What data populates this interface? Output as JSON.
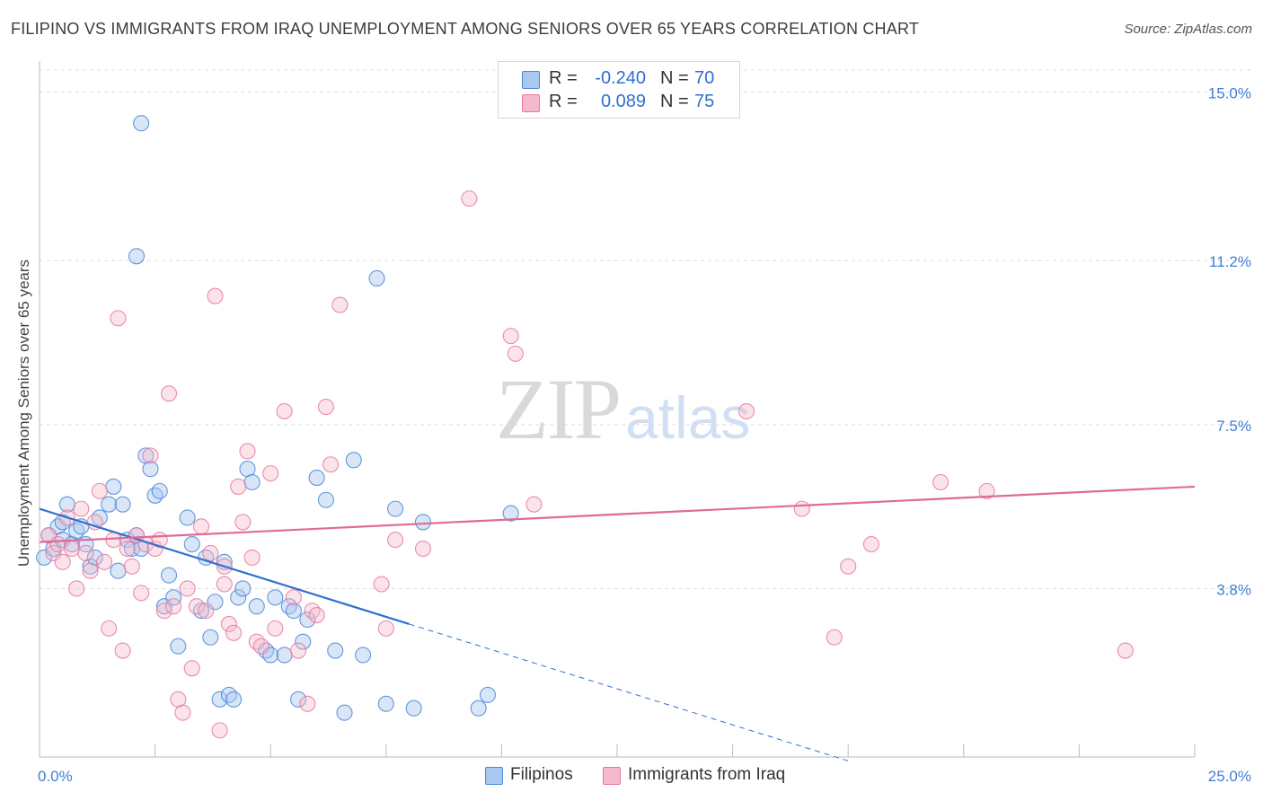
{
  "header": {
    "title": "FILIPINO VS IMMIGRANTS FROM IRAQ UNEMPLOYMENT AMONG SENIORS OVER 65 YEARS CORRELATION CHART",
    "source": "Source: ZipAtlas.com"
  },
  "watermark": {
    "zip": "ZIP",
    "atlas": "atlas"
  },
  "legend_top": {
    "rows": [
      {
        "r_label": "R =",
        "r_value": "-0.240",
        "n_label": "N =",
        "n_value": "70",
        "color": "#a9c8ef"
      },
      {
        "r_label": "R =",
        "r_value": "0.089",
        "n_label": "N =",
        "n_value": "75",
        "color": "#f6b8cb"
      }
    ]
  },
  "legend_bottom": {
    "items": [
      {
        "label": "Filipinos",
        "color": "#a9c8ef"
      },
      {
        "label": "Immigrants from Iraq",
        "color": "#f6b8cb"
      }
    ]
  },
  "chart_data": {
    "type": "scatter",
    "title": "FILIPINO VS IMMIGRANTS FROM IRAQ UNEMPLOYMENT AMONG SENIORS OVER 65 YEARS CORRELATION CHART",
    "xlabel": "",
    "ylabel": "Unemployment Among Seniors over 65 years",
    "xlim": [
      0,
      25
    ],
    "ylim": [
      0,
      15.5
    ],
    "x_tick_labels": [
      "0.0%",
      "25.0%"
    ],
    "y_ticks": [
      3.8,
      7.5,
      11.2,
      15.0
    ],
    "y_tick_labels": [
      "3.8%",
      "7.5%",
      "11.2%",
      "15.0%"
    ],
    "grid": true,
    "legend_position": "top-center",
    "colors": {
      "filipinos": "#4a87d6",
      "iraq": "#e8799f",
      "filipinos_fill": "#a9c8ef",
      "iraq_fill": "#f6b8cb"
    },
    "series": [
      {
        "name": "Filipinos",
        "r": -0.24,
        "n": 70,
        "trend": {
          "x0": 0.0,
          "y0": 5.6,
          "x1": 8.0,
          "y1": 3.0,
          "dash_to_x": 17.5
        },
        "points": [
          [
            0.1,
            4.5
          ],
          [
            0.2,
            5.0
          ],
          [
            0.3,
            4.7
          ],
          [
            0.4,
            5.2
          ],
          [
            0.5,
            4.9
          ],
          [
            0.5,
            5.3
          ],
          [
            0.6,
            5.7
          ],
          [
            0.7,
            4.8
          ],
          [
            0.8,
            5.1
          ],
          [
            0.9,
            5.2
          ],
          [
            1.0,
            4.8
          ],
          [
            1.1,
            4.3
          ],
          [
            1.2,
            4.5
          ],
          [
            1.3,
            5.4
          ],
          [
            1.5,
            5.7
          ],
          [
            1.6,
            6.1
          ],
          [
            1.7,
            4.2
          ],
          [
            1.8,
            5.7
          ],
          [
            1.9,
            4.9
          ],
          [
            2.0,
            4.7
          ],
          [
            2.1,
            5.0
          ],
          [
            2.2,
            4.7
          ],
          [
            2.3,
            6.8
          ],
          [
            2.4,
            6.5
          ],
          [
            2.5,
            5.9
          ],
          [
            2.6,
            6.0
          ],
          [
            2.7,
            3.4
          ],
          [
            2.8,
            4.1
          ],
          [
            2.9,
            3.6
          ],
          [
            3.0,
            2.5
          ],
          [
            3.2,
            5.4
          ],
          [
            3.3,
            4.8
          ],
          [
            3.5,
            3.3
          ],
          [
            3.6,
            4.5
          ],
          [
            3.7,
            2.7
          ],
          [
            3.8,
            3.5
          ],
          [
            3.9,
            1.3
          ],
          [
            4.0,
            4.4
          ],
          [
            4.1,
            1.4
          ],
          [
            4.2,
            1.3
          ],
          [
            4.3,
            3.6
          ],
          [
            4.4,
            3.8
          ],
          [
            4.5,
            6.5
          ],
          [
            4.6,
            6.2
          ],
          [
            4.7,
            3.4
          ],
          [
            4.9,
            2.4
          ],
          [
            5.0,
            2.3
          ],
          [
            5.1,
            3.6
          ],
          [
            5.3,
            2.3
          ],
          [
            5.4,
            3.4
          ],
          [
            5.5,
            3.3
          ],
          [
            5.6,
            1.3
          ],
          [
            5.7,
            2.6
          ],
          [
            5.8,
            3.1
          ],
          [
            6.0,
            6.3
          ],
          [
            6.2,
            5.8
          ],
          [
            6.4,
            2.4
          ],
          [
            6.6,
            1.0
          ],
          [
            6.8,
            6.7
          ],
          [
            7.0,
            2.3
          ],
          [
            7.3,
            10.8
          ],
          [
            7.5,
            1.2
          ],
          [
            7.7,
            5.6
          ],
          [
            8.1,
            1.1
          ],
          [
            8.3,
            5.3
          ],
          [
            9.5,
            1.1
          ],
          [
            9.7,
            1.4
          ],
          [
            10.2,
            5.5
          ],
          [
            2.1,
            11.3
          ],
          [
            2.2,
            14.3
          ]
        ]
      },
      {
        "name": "Immigrants from Iraq",
        "r": 0.089,
        "n": 75,
        "trend": {
          "x0": 0.0,
          "y0": 4.85,
          "x1": 25.0,
          "y1": 6.1
        },
        "points": [
          [
            0.2,
            5.0
          ],
          [
            0.3,
            4.6
          ],
          [
            0.4,
            4.8
          ],
          [
            0.5,
            4.4
          ],
          [
            0.6,
            5.4
          ],
          [
            0.7,
            4.7
          ],
          [
            0.8,
            3.8
          ],
          [
            0.9,
            5.6
          ],
          [
            1.0,
            4.6
          ],
          [
            1.1,
            4.2
          ],
          [
            1.2,
            5.3
          ],
          [
            1.3,
            6.0
          ],
          [
            1.4,
            4.4
          ],
          [
            1.5,
            2.9
          ],
          [
            1.6,
            4.9
          ],
          [
            1.7,
            9.9
          ],
          [
            1.8,
            2.4
          ],
          [
            1.9,
            4.7
          ],
          [
            2.0,
            4.3
          ],
          [
            2.1,
            5.0
          ],
          [
            2.2,
            3.7
          ],
          [
            2.3,
            4.8
          ],
          [
            2.4,
            6.8
          ],
          [
            2.5,
            4.7
          ],
          [
            2.6,
            4.9
          ],
          [
            2.7,
            3.3
          ],
          [
            2.8,
            8.2
          ],
          [
            2.9,
            3.4
          ],
          [
            3.0,
            1.3
          ],
          [
            3.1,
            1.0
          ],
          [
            3.2,
            3.8
          ],
          [
            3.3,
            2.0
          ],
          [
            3.4,
            3.4
          ],
          [
            3.5,
            5.2
          ],
          [
            3.6,
            3.3
          ],
          [
            3.7,
            4.6
          ],
          [
            3.8,
            10.4
          ],
          [
            3.9,
            0.6
          ],
          [
            4.0,
            4.3
          ],
          [
            4.1,
            3.0
          ],
          [
            4.2,
            2.8
          ],
          [
            4.3,
            6.1
          ],
          [
            4.4,
            5.3
          ],
          [
            4.5,
            6.9
          ],
          [
            4.6,
            4.5
          ],
          [
            4.7,
            2.6
          ],
          [
            4.8,
            2.5
          ],
          [
            5.0,
            6.4
          ],
          [
            5.1,
            2.9
          ],
          [
            5.3,
            7.8
          ],
          [
            5.5,
            3.6
          ],
          [
            5.6,
            2.4
          ],
          [
            5.8,
            1.2
          ],
          [
            5.9,
            3.3
          ],
          [
            6.0,
            3.2
          ],
          [
            6.2,
            7.9
          ],
          [
            6.3,
            6.6
          ],
          [
            6.5,
            10.2
          ],
          [
            7.4,
            3.9
          ],
          [
            7.5,
            2.9
          ],
          [
            7.7,
            4.9
          ],
          [
            8.3,
            4.7
          ],
          [
            9.3,
            12.6
          ],
          [
            10.2,
            9.5
          ],
          [
            10.3,
            9.1
          ],
          [
            10.7,
            5.7
          ],
          [
            15.3,
            7.8
          ],
          [
            16.5,
            5.6
          ],
          [
            17.2,
            2.7
          ],
          [
            17.5,
            4.3
          ],
          [
            18.0,
            4.8
          ],
          [
            19.5,
            6.2
          ],
          [
            20.5,
            6.0
          ],
          [
            23.5,
            2.4
          ],
          [
            4.0,
            3.9
          ]
        ]
      }
    ]
  }
}
